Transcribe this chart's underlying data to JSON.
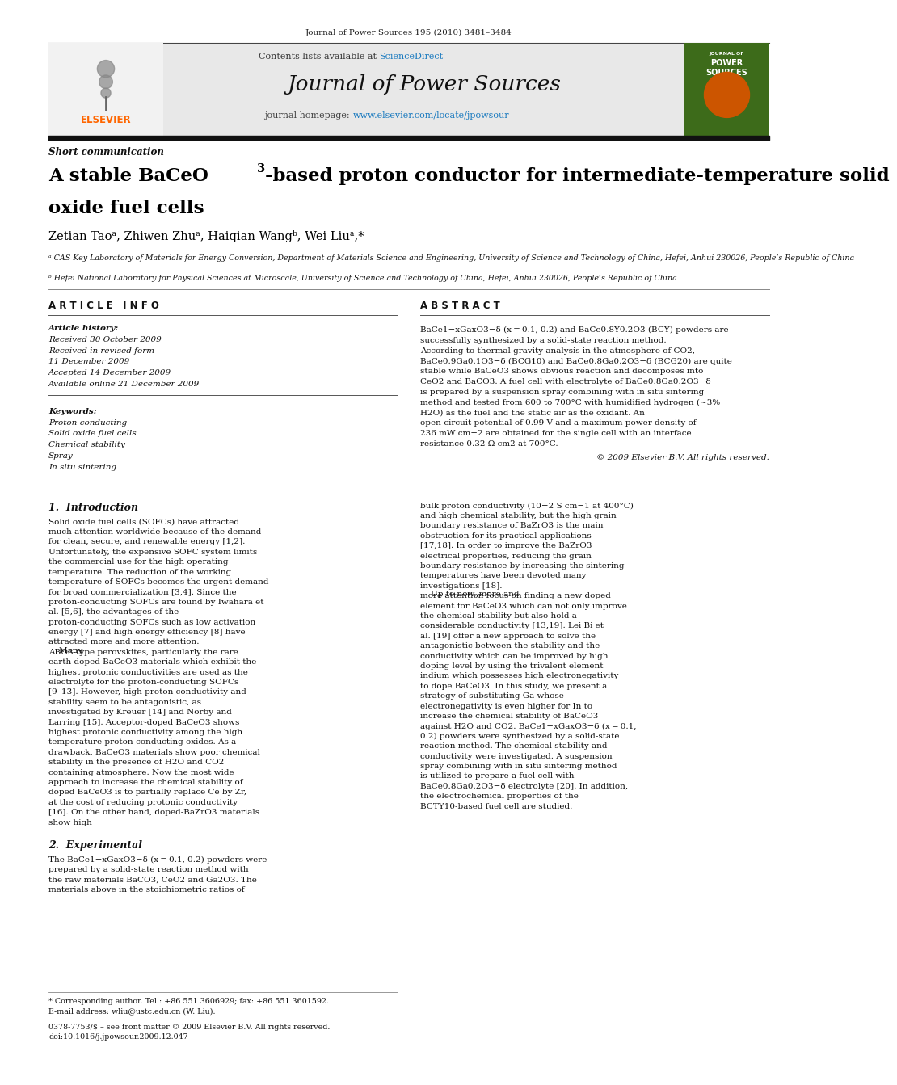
{
  "page_width": 9.92,
  "page_height": 13.23,
  "bg_color": "#ffffff",
  "top_journal_ref": "Journal of Power Sources 195 (2010) 3481–3484",
  "header_bg": "#e8e8e8",
  "journal_title": "Journal of Power Sources",
  "homepage_url": "www.elsevier.com/locate/jpowsour",
  "article_type": "Short communication",
  "paper_title_line2": "oxide fuel cells",
  "authors": "Zetian Taoᵃ, Zhiwen Zhuᵃ, Haiqian Wangᵇ, Wei Liuᵃ,*",
  "affiliation_a": "ᵃ CAS Key Laboratory of Materials for Energy Conversion, Department of Materials Science and Engineering, University of Science and Technology of China, Hefei, Anhui 230026, People’s Republic of China",
  "affiliation_b": "ᵇ Hefei National Laboratory for Physical Sciences at Microscale, University of Science and Technology of China, Hefei, Anhui 230026, People’s Republic of China",
  "article_info_title": "A R T I C L E   I N F O",
  "abstract_title": "A B S T R A C T",
  "article_history_label": "Article history:",
  "received": "Received 30 October 2009",
  "received_revised": "Received in revised form",
  "received_revised2": "11 December 2009",
  "accepted": "Accepted 14 December 2009",
  "available": "Available online 21 December 2009",
  "keywords_label": "Keywords:",
  "keyword1": "Proton-conducting",
  "keyword2": "Solid oxide fuel cells",
  "keyword3": "Chemical stability",
  "keyword4": "Spray",
  "keyword5": "In situ sintering",
  "abstract_text": "BaCe1−xGaxO3−δ (x = 0.1, 0.2) and BaCe0.8Y0.2O3 (BCY) powders are successfully synthesized by a solid-state reaction method. According to thermal gravity analysis in the atmosphere of CO2, BaCe0.9Ga0.1O3−δ (BCG10) and BaCe0.8Ga0.2O3−δ (BCG20) are quite stable while BaCeO3 shows obvious reaction and decomposes into CeO2 and BaCO3. A fuel cell with electrolyte of BaCe0.8Ga0.2O3−δ is prepared by a suspension spray combining with in situ sintering method and tested from 600 to 700°C with humidified hydrogen (∼3% H2O) as the fuel and the static air as the oxidant. An open-circuit potential of 0.99 V and a maximum power density of 236 mW cm−2 are obtained for the single cell with an interface resistance 0.32 Ω cm2 at 700°C.",
  "copyright": "© 2009 Elsevier B.V. All rights reserved.",
  "intro_title": "1.  Introduction",
  "intro_text": "Solid oxide fuel cells (SOFCs) have attracted much attention worldwide because of the demand for clean, secure, and renewable energy [1,2]. Unfortunately, the expensive SOFC system limits the commercial use for the high operating temperature. The reduction of the working temperature of SOFCs becomes the urgent demand for broad commercialization [3,4]. Since the proton-conducting SOFCs are found by Iwahara et al. [5,6], the advantages of the proton-conducting SOFCs such as low activation energy [7] and high energy efficiency [8] have attracted more and more attention.\n    Many ABO3-type perovskites, particularly the rare earth doped BaCeO3 materials which exhibit the highest protonic conductivities are used as the electrolyte for the proton-conducting SOFCs [9–13]. However, high proton conductivity and stability seem to be antagonistic, as investigated by Kreuer [14] and Norby and Larring [15]. Acceptor-doped BaCeO3 shows highest protonic conductivity among the high temperature proton-conducting oxides. As a drawback, BaCeO3 materials show poor chemical stability in the presence of H2O and CO2 containing atmosphere. Now the most wide approach to increase the chemical stability of doped BaCeO3 is to partially replace Ce by Zr, at the cost of reducing protonic conductivity [16]. On the other hand, doped-BaZrO3 materials show high",
  "right_col_text": "bulk proton conductivity (10−2 S cm−1 at 400°C) and high chemical stability, but the high grain boundary resistance of BaZrO3 is the main obstruction for its practical applications [17,18]. In order to improve the BaZrO3 electrical properties, reducing the grain boundary resistance by increasing the sintering temperatures have been devoted many investigations [18].\n    Up to now, more and more attention focus on finding a new doped element for BaCeO3 which can not only improve the chemical stability but also hold a considerable conductivity [13,19]. Lei Bi et al. [19] offer a new approach to solve the antagonistic between the stability and the conductivity which can be improved by high doping level by using the trivalent element indium which possesses high electronegativity to dope BaCeO3. In this study, we present a strategy of substituting Ga whose electronegativity is even higher for In to increase the chemical stability of BaCeO3 against H2O and CO2. BaCe1−xGaxO3−δ (x = 0.1, 0.2) powders were synthesized by a solid-state reaction method. The chemical stability and conductivity were investigated. A suspension spray combining with in situ sintering method is utilized to prepare a fuel cell with BaCe0.8Ga0.2O3−δ electrolyte [20]. In addition, the electrochemical properties of the BCTY10-based fuel cell are studied.",
  "section2_title": "2.  Experimental",
  "section2_text": "The BaCe1−xGaxO3−δ (x = 0.1, 0.2) powders were prepared by a solid-state reaction method with the raw materials BaCO3, CeO2 and Ga2O3. The materials above in the stoichiometric ratios of",
  "footnote_star": "* Corresponding author. Tel.: +86 551 3606929; fax: +86 551 3601592.",
  "footnote_email": "E-mail address: wliu@ustc.edu.cn (W. Liu).",
  "issn": "0378-7753/$ – see front matter © 2009 Elsevier B.V. All rights reserved.",
  "doi": "doi:10.1016/j.jpowsour.2009.12.047",
  "elsevier_color": "#FF6600",
  "sciencedirect_color": "#1a7abf",
  "url_color": "#1a7abf"
}
